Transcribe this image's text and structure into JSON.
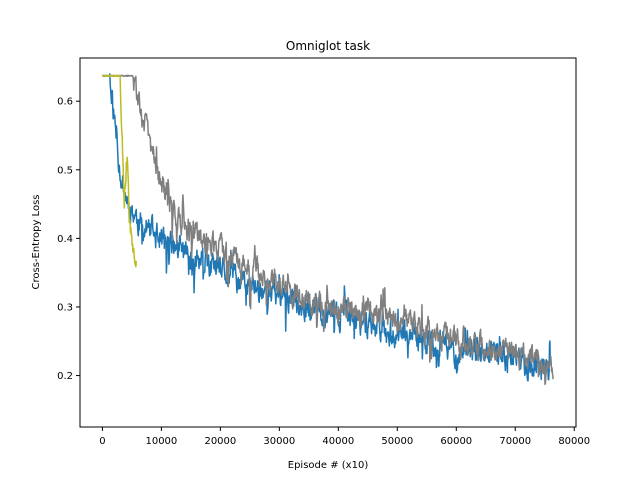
{
  "chart_data": {
    "type": "line",
    "title": "Omniglot task",
    "xlabel": "Episode # (x10)",
    "ylabel": "Cross-Entropy Loss",
    "xlim": [
      -3800,
      80300
    ],
    "ylim": [
      0.125,
      0.663
    ],
    "x_ticks": [
      0,
      10000,
      20000,
      30000,
      40000,
      50000,
      60000,
      70000,
      80000
    ],
    "x_tick_labels": [
      "0",
      "10000",
      "20000",
      "30000",
      "40000",
      "50000",
      "60000",
      "70000",
      "80000"
    ],
    "y_ticks": [
      0.2,
      0.3,
      0.4,
      0.5,
      0.6
    ],
    "y_tick_labels": [
      "0.2",
      "0.3",
      "0.4",
      "0.5",
      "0.6"
    ],
    "grid": false,
    "legend": "none",
    "series": [
      {
        "color": "#1f77b4",
        "noise": 0.035,
        "seed": 11,
        "x_end": 76000,
        "points": [
          [
            0,
            0.637
          ],
          [
            1200,
            0.637
          ],
          [
            1500,
            0.625
          ],
          [
            2200,
            0.56
          ],
          [
            3000,
            0.5
          ],
          [
            4000,
            0.46
          ],
          [
            6000,
            0.425
          ],
          [
            8000,
            0.41
          ],
          [
            10000,
            0.398
          ],
          [
            15000,
            0.375
          ],
          [
            20000,
            0.35
          ],
          [
            25000,
            0.332
          ],
          [
            30000,
            0.318
          ],
          [
            35000,
            0.3
          ],
          [
            40000,
            0.29
          ],
          [
            45000,
            0.278
          ],
          [
            50000,
            0.262
          ],
          [
            55000,
            0.25
          ],
          [
            60000,
            0.236
          ],
          [
            65000,
            0.228
          ],
          [
            70000,
            0.226
          ],
          [
            73000,
            0.215
          ],
          [
            76000,
            0.2
          ]
        ]
      },
      {
        "color": "#7f7f7f",
        "noise": 0.032,
        "seed": 29,
        "x_end": 76500,
        "points": [
          [
            0,
            0.637
          ],
          [
            5200,
            0.637
          ],
          [
            5600,
            0.615
          ],
          [
            6500,
            0.59
          ],
          [
            7500,
            0.56
          ],
          [
            9000,
            0.51
          ],
          [
            10000,
            0.48
          ],
          [
            12000,
            0.44
          ],
          [
            15000,
            0.41
          ],
          [
            20000,
            0.385
          ],
          [
            25000,
            0.36
          ],
          [
            30000,
            0.33
          ],
          [
            35000,
            0.31
          ],
          [
            40000,
            0.298
          ],
          [
            45000,
            0.29
          ],
          [
            50000,
            0.28
          ],
          [
            55000,
            0.262
          ],
          [
            60000,
            0.25
          ],
          [
            65000,
            0.24
          ],
          [
            70000,
            0.232
          ],
          [
            73000,
            0.225
          ],
          [
            76500,
            0.205
          ]
        ]
      },
      {
        "color": "#bcbd22",
        "noise": 0.03,
        "seed": 5,
        "x_end": 5800,
        "points": [
          [
            0,
            0.637
          ],
          [
            3000,
            0.637
          ],
          [
            3300,
            0.56
          ],
          [
            3700,
            0.46
          ],
          [
            4100,
            0.52
          ],
          [
            4500,
            0.43
          ],
          [
            5000,
            0.4
          ],
          [
            5400,
            0.38
          ],
          [
            5800,
            0.37
          ]
        ]
      }
    ]
  }
}
